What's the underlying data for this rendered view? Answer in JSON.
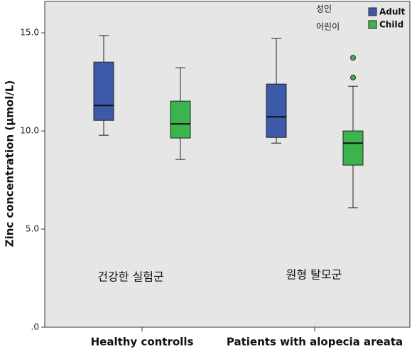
{
  "chart_data": {
    "type": "box",
    "y_label": "Zinc concentration (μmol/L)",
    "categories": [
      "Healthy controlls",
      "Patients with alopecia areata"
    ],
    "series": [
      {
        "name": "Adult",
        "color": "#3c5aa8",
        "values": [
          {
            "min": 9.78,
            "q1": 10.54,
            "median": 11.3,
            "q3": 13.51,
            "max": 14.86,
            "outliers": []
          },
          {
            "min": 9.38,
            "q1": 9.67,
            "median": 10.72,
            "q3": 12.39,
            "max": 14.71,
            "outliers": []
          }
        ]
      },
      {
        "name": "Child",
        "color": "#3cb44e",
        "values": [
          {
            "min": 8.55,
            "q1": 9.64,
            "median": 10.36,
            "q3": 11.52,
            "max": 13.22,
            "outliers": []
          },
          {
            "min": 6.09,
            "q1": 8.26,
            "median": 9.38,
            "q3": 10.0,
            "max": 12.28,
            "outliers": [
              13.73,
              12.72
            ]
          }
        ]
      }
    ],
    "ylim": [
      0,
      16.6
    ],
    "yticks": [
      {
        "value": 0,
        "label": ".0"
      },
      {
        "value": 5,
        "label": "5.0"
      },
      {
        "value": 10,
        "label": "10.0"
      },
      {
        "value": 15,
        "label": "15.0"
      }
    ],
    "legend_annotations": [
      "성인",
      "어린이"
    ],
    "annotations": [
      "건강한 실험군",
      "원형 탈모군"
    ]
  }
}
